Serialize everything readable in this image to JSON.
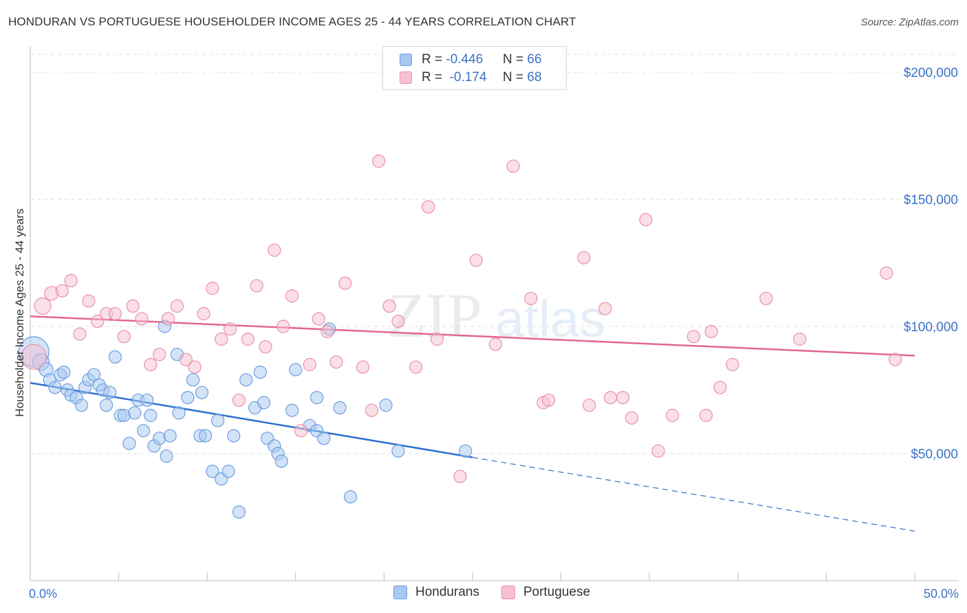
{
  "header": {
    "title": "HONDURAN VS PORTUGUESE HOUSEHOLDER INCOME AGES 25 - 44 YEARS CORRELATION CHART",
    "source": "Source: ZipAtlas.com"
  },
  "watermark": {
    "zip": "ZIP",
    "atlas": "atlas"
  },
  "legend": {
    "rows": [
      {
        "r_label": "R =",
        "r_value": "-0.446",
        "n_label": "N =",
        "n_value": "66",
        "color": "#a8c8f0",
        "border": "#6b9ee0"
      },
      {
        "r_label": "R =",
        "r_value": "-0.174",
        "n_label": "N =",
        "n_value": "68",
        "color": "#f8c0d0",
        "border": "#e890aa"
      }
    ]
  },
  "chart_data": {
    "type": "scatter",
    "title": "HONDURAN VS PORTUGUESE HOUSEHOLDER INCOME AGES 25 - 44 YEARS CORRELATION CHART",
    "xlabel": "",
    "ylabel": "Householder Income Ages 25 - 44 years",
    "xlim": [
      0,
      50
    ],
    "ylim": [
      0,
      210000
    ],
    "x_tick_labels": [
      "0.0%",
      "50.0%"
    ],
    "y_ticks": [
      50000,
      100000,
      150000,
      200000
    ],
    "y_tick_labels": [
      "$50,000",
      "$100,000",
      "$150,000",
      "$200,000"
    ],
    "grid": true,
    "legend_position": "top-center",
    "series": [
      {
        "name": "Hondurans",
        "color": "#a8c8f0",
        "stroke": "#6b9ee0",
        "line_color": "#2a6fd0",
        "trend": {
          "x": [
            0,
            25,
            50
          ],
          "y": [
            77800,
            48500,
            19500
          ],
          "solid_until": 25
        },
        "points": [
          [
            0.2,
            90000,
            22
          ],
          [
            0.6,
            86000,
            12
          ],
          [
            0.9,
            83000,
            10
          ],
          [
            1.1,
            79000,
            9
          ],
          [
            1.4,
            76000,
            9
          ],
          [
            1.7,
            81000,
            9
          ],
          [
            1.9,
            82000,
            9
          ],
          [
            2.1,
            75000,
            9
          ],
          [
            2.3,
            73000,
            9
          ],
          [
            2.6,
            72000,
            9
          ],
          [
            2.9,
            69000,
            9
          ],
          [
            3.1,
            76000,
            9
          ],
          [
            3.3,
            79000,
            9
          ],
          [
            3.6,
            81000,
            9
          ],
          [
            3.9,
            77000,
            9
          ],
          [
            4.1,
            75000,
            9
          ],
          [
            4.5,
            74000,
            9
          ],
          [
            4.3,
            69000,
            9
          ],
          [
            4.8,
            88000,
            9
          ],
          [
            5.1,
            65000,
            9
          ],
          [
            5.3,
            65000,
            9
          ],
          [
            5.6,
            54000,
            9
          ],
          [
            5.9,
            66000,
            9
          ],
          [
            6.1,
            71000,
            9
          ],
          [
            6.4,
            59000,
            9
          ],
          [
            6.6,
            71000,
            9
          ],
          [
            6.8,
            65000,
            9
          ],
          [
            7.0,
            53000,
            9
          ],
          [
            7.3,
            56000,
            9
          ],
          [
            7.7,
            49000,
            9
          ],
          [
            7.9,
            57000,
            9
          ],
          [
            7.6,
            100000,
            9
          ],
          [
            8.3,
            89000,
            9
          ],
          [
            8.4,
            66000,
            9
          ],
          [
            8.9,
            72000,
            9
          ],
          [
            9.2,
            79000,
            9
          ],
          [
            9.6,
            57000,
            9
          ],
          [
            9.7,
            74000,
            9
          ],
          [
            9.9,
            57000,
            9
          ],
          [
            10.3,
            43000,
            9
          ],
          [
            10.8,
            40000,
            9
          ],
          [
            11.2,
            43000,
            9
          ],
          [
            10.6,
            63000,
            9
          ],
          [
            11.5,
            57000,
            9
          ],
          [
            11.8,
            27000,
            9
          ],
          [
            12.2,
            79000,
            9
          ],
          [
            12.7,
            68000,
            9
          ],
          [
            13.0,
            82000,
            9
          ],
          [
            13.2,
            70000,
            9
          ],
          [
            13.4,
            56000,
            9
          ],
          [
            13.8,
            53000,
            9
          ],
          [
            14.0,
            50000,
            9
          ],
          [
            14.2,
            47000,
            9
          ],
          [
            15.0,
            83000,
            9
          ],
          [
            14.8,
            67000,
            9
          ],
          [
            15.8,
            61000,
            9
          ],
          [
            16.2,
            59000,
            9
          ],
          [
            16.2,
            72000,
            9
          ],
          [
            16.6,
            56000,
            9
          ],
          [
            16.9,
            99000,
            9
          ],
          [
            17.5,
            68000,
            9
          ],
          [
            18.1,
            33000,
            9
          ],
          [
            20.1,
            69000,
            9
          ],
          [
            20.8,
            51000,
            9
          ],
          [
            24.6,
            51000,
            9
          ]
        ]
      },
      {
        "name": "Portuguese",
        "color": "#f8c0d0",
        "stroke": "#e890aa",
        "line_color": "#e2678e",
        "trend": {
          "x": [
            0,
            50
          ],
          "y": [
            104000,
            88500
          ],
          "solid_until": 50
        },
        "points": [
          [
            0.2,
            88000,
            18
          ],
          [
            0.7,
            108000,
            12
          ],
          [
            1.2,
            113000,
            10
          ],
          [
            1.8,
            114000,
            9
          ],
          [
            2.3,
            118000,
            9
          ],
          [
            2.8,
            97000,
            9
          ],
          [
            3.3,
            110000,
            9
          ],
          [
            3.8,
            102000,
            9
          ],
          [
            4.3,
            105000,
            9
          ],
          [
            4.8,
            105000,
            9
          ],
          [
            5.3,
            96000,
            9
          ],
          [
            5.8,
            108000,
            9
          ],
          [
            6.3,
            103000,
            9
          ],
          [
            6.8,
            85000,
            9
          ],
          [
            7.3,
            89000,
            9
          ],
          [
            7.8,
            103000,
            9
          ],
          [
            8.3,
            108000,
            9
          ],
          [
            8.8,
            87000,
            9
          ],
          [
            9.3,
            84000,
            9
          ],
          [
            9.8,
            105000,
            9
          ],
          [
            10.3,
            115000,
            9
          ],
          [
            10.8,
            95000,
            9
          ],
          [
            11.3,
            99000,
            9
          ],
          [
            11.8,
            71000,
            9
          ],
          [
            12.3,
            95000,
            9
          ],
          [
            12.8,
            116000,
            9
          ],
          [
            13.3,
            92000,
            9
          ],
          [
            13.8,
            130000,
            9
          ],
          [
            14.3,
            100000,
            9
          ],
          [
            14.8,
            112000,
            9
          ],
          [
            15.3,
            59000,
            9
          ],
          [
            15.8,
            85000,
            9
          ],
          [
            16.3,
            103000,
            9
          ],
          [
            16.8,
            98000,
            9
          ],
          [
            17.3,
            86000,
            9
          ],
          [
            17.8,
            117000,
            9
          ],
          [
            18.8,
            84000,
            9
          ],
          [
            19.3,
            67000,
            9
          ],
          [
            19.7,
            165000,
            9
          ],
          [
            20.3,
            108000,
            9
          ],
          [
            20.8,
            102000,
            9
          ],
          [
            21.8,
            84000,
            9
          ],
          [
            22.5,
            147000,
            9
          ],
          [
            23.0,
            95000,
            9
          ],
          [
            24.3,
            41000,
            9
          ],
          [
            25.2,
            126000,
            9
          ],
          [
            26.3,
            93000,
            9
          ],
          [
            27.3,
            163000,
            9
          ],
          [
            28.3,
            111000,
            9
          ],
          [
            29.0,
            70000,
            9
          ],
          [
            29.3,
            71000,
            9
          ],
          [
            31.3,
            127000,
            9
          ],
          [
            31.6,
            69000,
            9
          ],
          [
            32.5,
            107000,
            9
          ],
          [
            32.8,
            72000,
            9
          ],
          [
            33.5,
            72000,
            9
          ],
          [
            34.0,
            64000,
            9
          ],
          [
            34.8,
            142000,
            9
          ],
          [
            35.5,
            51000,
            9
          ],
          [
            36.3,
            65000,
            9
          ],
          [
            37.5,
            96000,
            9
          ],
          [
            38.2,
            65000,
            9
          ],
          [
            38.5,
            98000,
            9
          ],
          [
            39.0,
            76000,
            9
          ],
          [
            39.7,
            85000,
            9
          ],
          [
            41.6,
            111000,
            9
          ],
          [
            43.5,
            95000,
            9
          ],
          [
            48.4,
            121000,
            9
          ],
          [
            48.9,
            87000,
            9
          ]
        ]
      }
    ]
  },
  "bottom_legend": [
    {
      "label": "Hondurans",
      "color": "#a8c8f0",
      "border": "#6b9ee0"
    },
    {
      "label": "Portuguese",
      "color": "#f8c0d0",
      "border": "#e890aa"
    }
  ]
}
